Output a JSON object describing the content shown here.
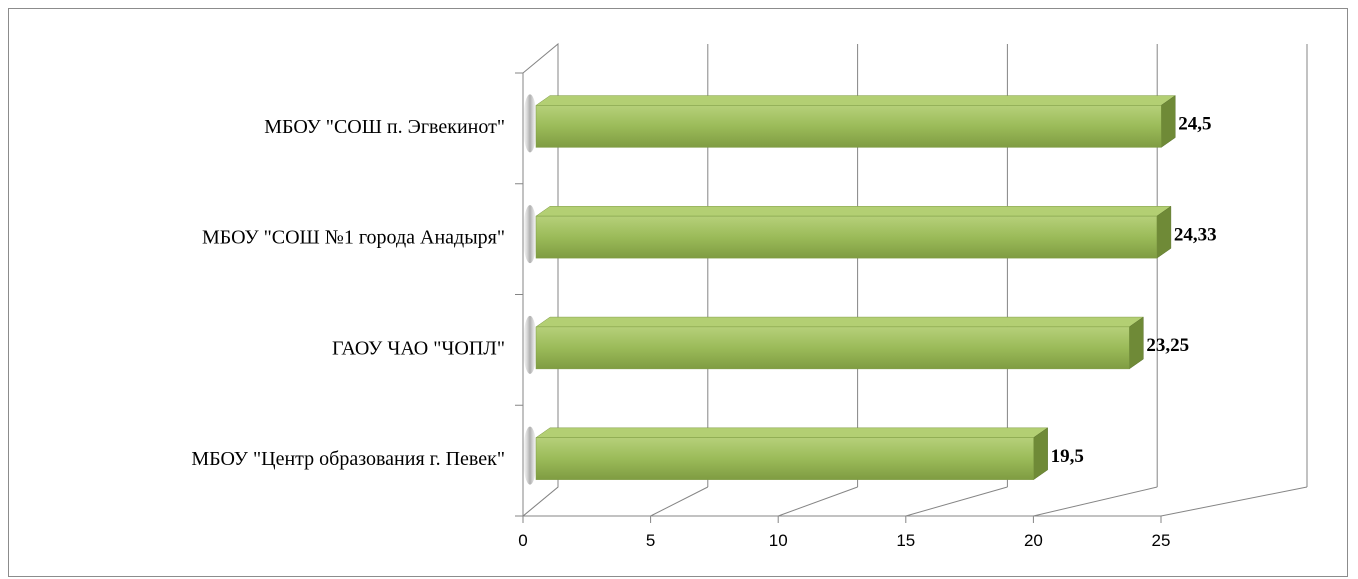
{
  "chart_data": {
    "type": "bar",
    "orientation": "horizontal",
    "style": "3d",
    "title": "",
    "xlabel": "",
    "ylabel": "",
    "categories": [
      "МБОУ \"Центр образования г. Певек\"",
      "ГАОУ ЧАО \"ЧОПЛ\"",
      "МБОУ \"СОШ №1 города  Анадыря\"",
      "МБОУ \"СОШ п. Эгвекинот\""
    ],
    "values": [
      19.5,
      23.25,
      24.33,
      24.5
    ],
    "value_labels": [
      "19,5",
      "23,25",
      "24,33",
      "24,5"
    ],
    "xlim": [
      0,
      25
    ],
    "xticks": [
      "0",
      "5",
      "10",
      "15",
      "20",
      "25"
    ],
    "grid": true,
    "legend": "none",
    "colors": {
      "bar_front": "#9bbb59",
      "bar_top": "#b3cf73",
      "bar_side": "#6f8a37",
      "gridline": "#858585"
    }
  }
}
